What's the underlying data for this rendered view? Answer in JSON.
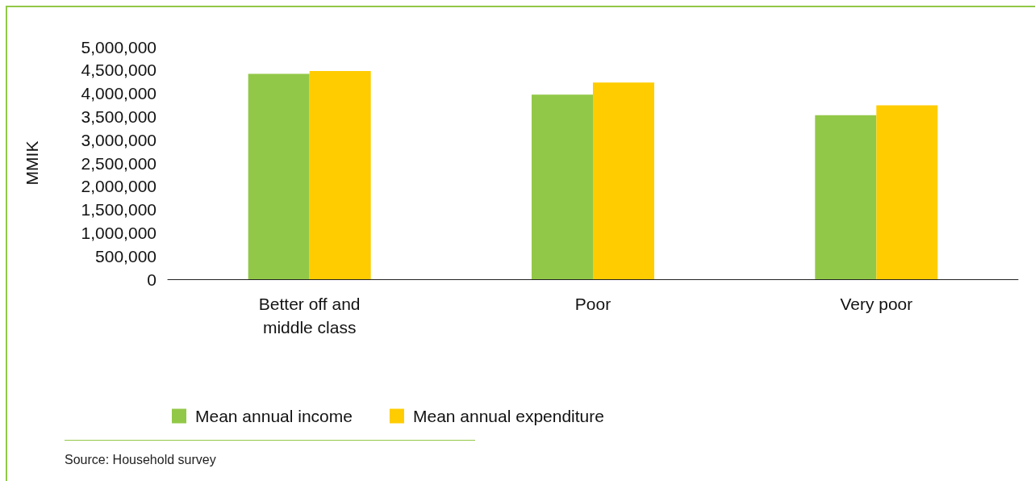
{
  "chart_data": {
    "type": "bar",
    "ylabel": "MMIK",
    "categories": [
      "Better off and\nmiddle class",
      "Poor",
      "Very poor"
    ],
    "series": [
      {
        "name": "Mean annual income",
        "color": "#92c847",
        "values": [
          4420000,
          3970000,
          3530000
        ]
      },
      {
        "name": "Mean annual expenditure",
        "color": "#ffcc00",
        "values": [
          4480000,
          4230000,
          3740000
        ]
      }
    ],
    "ylim": [
      0,
      5000000
    ],
    "yticks": [
      0,
      {
        "value": 500000,
        "label": "500,000"
      },
      {
        "value": 1000000,
        "label": "1,000,000"
      },
      {
        "value": 1500000,
        "label": "1,500,000"
      },
      {
        "value": 2000000,
        "label": "2,000,000"
      },
      {
        "value": 2500000,
        "label": "2,500,000"
      },
      {
        "value": 3000000,
        "label": "3,000,000"
      },
      {
        "value": 3500000,
        "label": "3,500,000"
      },
      {
        "value": 4000000,
        "label": "4,000,000"
      },
      {
        "value": 4500000,
        "label": "4,500,000"
      },
      {
        "value": 5000000,
        "label": "5,000,000"
      }
    ],
    "grid": false,
    "legend": "bottom left",
    "annotations": [
      "Source: Household survey"
    ]
  }
}
